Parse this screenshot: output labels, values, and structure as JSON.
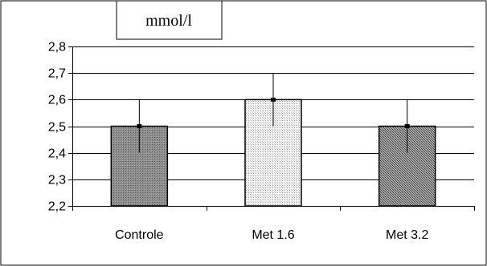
{
  "chart_data": {
    "type": "bar",
    "unit_label": "mmol/l",
    "categories": [
      "Controle",
      "Met 1.6",
      "Met 3.2"
    ],
    "values": [
      2.5,
      2.6,
      2.5
    ],
    "errors": [
      0.1,
      0.1,
      0.1
    ],
    "ylim": [
      2.2,
      2.8
    ],
    "yticks": [
      2.2,
      2.3,
      2.4,
      2.5,
      2.6,
      2.7,
      2.8
    ],
    "ytick_labels": [
      "2,2",
      "2,3",
      "2,4",
      "2,5",
      "2,6",
      "2,7",
      "2,8"
    ],
    "bar_patterns": [
      "dense-grey",
      "light-dots",
      "dark-dots"
    ],
    "grid": true,
    "legend": "none"
  }
}
